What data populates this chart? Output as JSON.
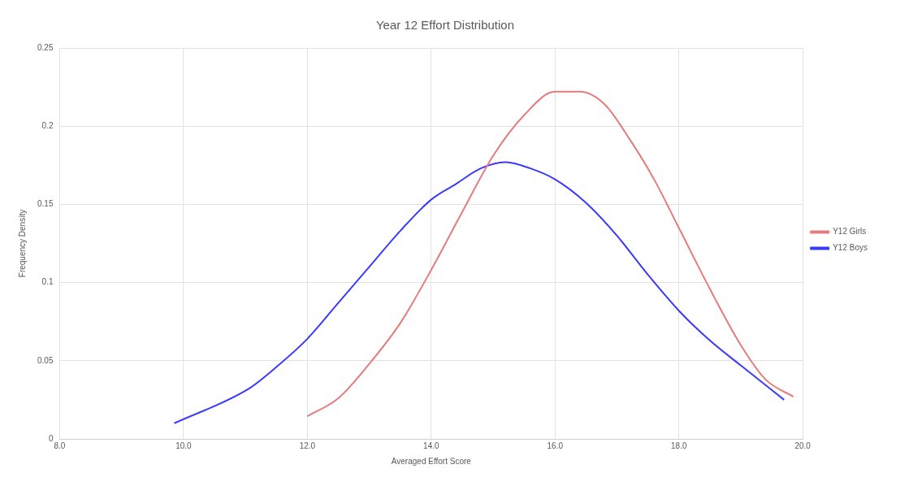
{
  "chart_data": {
    "type": "line",
    "title": "Year 12 Effort Distribution",
    "xlabel": "Averaged Effort Score",
    "ylabel": "Frequency Density",
    "xlim": [
      8,
      20
    ],
    "xticks": [
      {
        "value": 8,
        "label": "8.0"
      },
      {
        "value": 10,
        "label": "10.0"
      },
      {
        "value": 12,
        "label": "12.0"
      },
      {
        "value": 14,
        "label": "14.0"
      },
      {
        "value": 16,
        "label": "16.0"
      },
      {
        "value": 18,
        "label": "18.0"
      },
      {
        "value": 20,
        "label": "20.0"
      }
    ],
    "ylim": [
      0,
      0.25
    ],
    "yticks": [
      0,
      0.05,
      0.1,
      0.15,
      0.2,
      0.25
    ],
    "grid": true,
    "legend": "right",
    "marker": "none",
    "line_style": "solid",
    "series": [
      {
        "name": "Y12 Girls",
        "color": "#e47c7c",
        "x": [
          12,
          12.5,
          13,
          13.5,
          14,
          14.5,
          15,
          15.5,
          16,
          16.4,
          16.8,
          17.2,
          17.6,
          18,
          18.5,
          19,
          19.4,
          19.85
        ],
        "values": [
          0.0145,
          0.026,
          0.048,
          0.074,
          0.108,
          0.145,
          0.181,
          0.207,
          0.222,
          0.222,
          0.214,
          0.192,
          0.166,
          0.135,
          0.096,
          0.06,
          0.038,
          0.027
        ]
      },
      {
        "name": "Y12 Boys",
        "color": "#3a3aff",
        "x": [
          9.85,
          11.05,
          11.5,
          12,
          12.5,
          13,
          13.5,
          14,
          14.4,
          14.8,
          15.2,
          15.6,
          16,
          16.5,
          17,
          17.5,
          18,
          18.5,
          19,
          19.7
        ],
        "values": [
          0.01,
          0.032,
          0.046,
          0.064,
          0.087,
          0.11,
          0.133,
          0.153,
          0.163,
          0.173,
          0.177,
          0.173,
          0.166,
          0.151,
          0.13,
          0.105,
          0.082,
          0.063,
          0.047,
          0.025
        ]
      }
    ]
  }
}
